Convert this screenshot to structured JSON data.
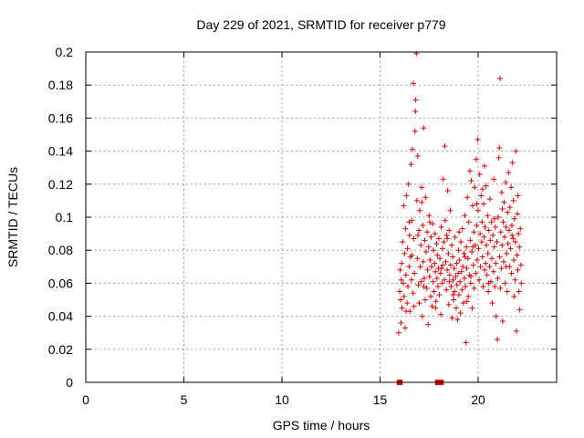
{
  "chart_data": {
    "type": "scatter",
    "title": "Day 229 of 2021, SRMTID for receiver p779",
    "xlabel": "GPS time / hours",
    "ylabel": "SRMTID / TECUs",
    "xlim": [
      0,
      24
    ],
    "ylim": [
      0,
      0.2
    ],
    "grid": true,
    "x_ticks": [
      0,
      5,
      10,
      15,
      20
    ],
    "x_tick_labels": [
      "0",
      "5",
      "10",
      "15",
      "20"
    ],
    "y_ticks": [
      0,
      0.02,
      0.04,
      0.06,
      0.08,
      0.1,
      0.12,
      0.14,
      0.16,
      0.18,
      0.2
    ],
    "y_tick_labels": [
      "0",
      "0.02",
      "0.04",
      "0.06",
      "0.08",
      "0.1",
      "0.12",
      "0.14",
      "0.16",
      "0.18",
      "0.2"
    ],
    "marker": "+",
    "color": "#e00000",
    "zero_segments": [
      [
        15.95,
        16.05
      ],
      [
        17.9,
        18.15
      ]
    ],
    "points": [
      [
        15.95,
        0.03
      ],
      [
        16.0,
        0.055
      ],
      [
        16.02,
        0.068
      ],
      [
        16.05,
        0.05
      ],
      [
        16.07,
        0.036
      ],
      [
        16.1,
        0.072
      ],
      [
        16.12,
        0.045
      ],
      [
        16.15,
        0.085
      ],
      [
        16.18,
        0.06
      ],
      [
        16.2,
        0.107
      ],
      [
        16.22,
        0.052
      ],
      [
        16.25,
        0.078
      ],
      [
        16.28,
        0.033
      ],
      [
        16.3,
        0.093
      ],
      [
        16.32,
        0.065
      ],
      [
        16.35,
        0.113
      ],
      [
        16.38,
        0.048
      ],
      [
        16.4,
        0.081
      ],
      [
        16.42,
        0.058
      ],
      [
        16.45,
        0.12
      ],
      [
        16.48,
        0.07
      ],
      [
        16.5,
        0.089
      ],
      [
        16.52,
        0.043
      ],
      [
        16.55,
        0.076
      ],
      [
        16.58,
        0.132
      ],
      [
        16.6,
        0.062
      ],
      [
        16.62,
        0.098
      ],
      [
        16.65,
        0.141
      ],
      [
        16.68,
        0.054
      ],
      [
        16.7,
        0.181
      ],
      [
        16.72,
        0.087
      ],
      [
        16.75,
        0.066
      ],
      [
        16.78,
        0.152
      ],
      [
        16.8,
        0.164
      ],
      [
        16.82,
        0.171
      ],
      [
        16.85,
        0.199
      ],
      [
        16.88,
        0.11
      ],
      [
        16.9,
        0.075
      ],
      [
        16.92,
        0.137
      ],
      [
        16.95,
        0.059
      ],
      [
        16.98,
        0.092
      ],
      [
        17.0,
        0.048
      ],
      [
        17.02,
        0.104
      ],
      [
        17.05,
        0.07
      ],
      [
        17.08,
        0.083
      ],
      [
        17.1,
        0.061
      ],
      [
        17.12,
        0.118
      ],
      [
        17.15,
        0.04
      ],
      [
        17.18,
        0.095
      ],
      [
        17.2,
        0.073
      ],
      [
        17.22,
        0.154
      ],
      [
        17.25,
        0.063
      ],
      [
        17.28,
        0.086
      ],
      [
        17.3,
        0.05
      ],
      [
        17.32,
        0.112
      ],
      [
        17.35,
        0.079
      ],
      [
        17.38,
        0.057
      ],
      [
        17.4,
        0.091
      ],
      [
        17.42,
        0.068
      ],
      [
        17.45,
        0.035
      ],
      [
        17.48,
        0.082
      ],
      [
        17.5,
        0.101
      ],
      [
        17.52,
        0.064
      ],
      [
        17.55,
        0.074
      ],
      [
        17.58,
        0.052
      ],
      [
        17.6,
        0.088
      ],
      [
        17.62,
        0.07
      ],
      [
        17.65,
        0.046
      ],
      [
        17.68,
        0.096
      ],
      [
        17.7,
        0.061
      ],
      [
        17.72,
        0.08
      ],
      [
        17.75,
        0.055
      ],
      [
        17.78,
        0.072
      ],
      [
        17.8,
        0.09
      ],
      [
        17.82,
        0.067
      ],
      [
        17.85,
        0.049
      ],
      [
        17.88,
        0.084
      ],
      [
        17.9,
        0.063
      ],
      [
        17.92,
        0.077
      ],
      [
        17.95,
        0.058
      ],
      [
        17.98,
        0.069
      ],
      [
        18.0,
        0.087
      ],
      [
        18.02,
        0.053
      ],
      [
        18.05,
        0.075
      ],
      [
        18.08,
        0.066
      ],
      [
        18.1,
        0.041
      ],
      [
        18.12,
        0.094
      ],
      [
        18.15,
        0.06
      ],
      [
        18.18,
        0.081
      ],
      [
        18.2,
        0.071
      ],
      [
        18.22,
        0.123
      ],
      [
        18.25,
        0.085
      ],
      [
        18.28,
        0.062
      ],
      [
        18.3,
        0.143
      ],
      [
        18.32,
        0.098
      ],
      [
        18.35,
        0.073
      ],
      [
        18.38,
        0.056
      ],
      [
        18.4,
        0.089
      ],
      [
        18.42,
        0.068
      ],
      [
        18.45,
        0.116
      ],
      [
        18.48,
        0.078
      ],
      [
        18.5,
        0.047
      ],
      [
        18.52,
        0.092
      ],
      [
        18.55,
        0.065
      ],
      [
        18.58,
        0.104
      ],
      [
        18.6,
        0.071
      ],
      [
        18.62,
        0.058
      ],
      [
        18.65,
        0.083
      ],
      [
        18.68,
        0.039
      ],
      [
        18.7,
        0.076
      ],
      [
        18.72,
        0.062
      ],
      [
        18.75,
        0.05
      ],
      [
        18.78,
        0.069
      ],
      [
        18.8,
        0.055
      ],
      [
        18.82,
        0.088
      ],
      [
        18.85,
        0.064
      ],
      [
        18.88,
        0.045
      ],
      [
        18.9,
        0.072
      ],
      [
        18.92,
        0.059
      ],
      [
        18.95,
        0.038
      ],
      [
        18.98,
        0.066
      ],
      [
        19.0,
        0.08
      ],
      [
        19.02,
        0.053
      ],
      [
        19.05,
        0.074
      ],
      [
        19.08,
        0.061
      ],
      [
        19.1,
        0.042
      ],
      [
        19.12,
        0.085
      ],
      [
        19.15,
        0.067
      ],
      [
        19.18,
        0.056
      ],
      [
        19.2,
        0.093
      ],
      [
        19.22,
        0.07
      ],
      [
        19.25,
        0.048
      ],
      [
        19.28,
        0.078
      ],
      [
        19.3,
        0.063
      ],
      [
        19.32,
        0.101
      ],
      [
        19.35,
        0.058
      ],
      [
        19.38,
        0.024
      ],
      [
        19.4,
        0.082
      ],
      [
        19.42,
        0.069
      ],
      [
        19.45,
        0.112
      ],
      [
        19.48,
        0.075
      ],
      [
        19.5,
        0.052
      ],
      [
        19.52,
        0.097
      ],
      [
        19.55,
        0.065
      ],
      [
        19.58,
        0.128
      ],
      [
        19.6,
        0.086
      ],
      [
        19.62,
        0.06
      ],
      [
        19.65,
        0.122
      ],
      [
        19.68,
        0.079
      ],
      [
        19.7,
        0.045
      ],
      [
        19.72,
        0.107
      ],
      [
        19.75,
        0.071
      ],
      [
        19.78,
        0.091
      ],
      [
        19.8,
        0.057
      ],
      [
        19.82,
        0.118
      ],
      [
        19.85,
        0.083
      ],
      [
        19.88,
        0.066
      ],
      [
        19.9,
        0.135
      ],
      [
        19.92,
        0.095
      ],
      [
        19.95,
        0.074
      ],
      [
        19.98,
        0.147
      ],
      [
        20.0,
        0.104
      ],
      [
        20.02,
        0.081
      ],
      [
        20.05,
        0.062
      ],
      [
        20.08,
        0.126
      ],
      [
        20.1,
        0.09
      ],
      [
        20.12,
        0.07
      ],
      [
        20.15,
        0.113
      ],
      [
        20.18,
        0.085
      ],
      [
        20.2,
        0.097
      ],
      [
        20.22,
        0.076
      ],
      [
        20.25,
        0.058
      ],
      [
        20.28,
        0.108
      ],
      [
        20.3,
        0.088
      ],
      [
        20.32,
        0.131
      ],
      [
        20.35,
        0.094
      ],
      [
        20.38,
        0.072
      ],
      [
        20.4,
        0.119
      ],
      [
        20.42,
        0.083
      ],
      [
        20.45,
        0.065
      ],
      [
        20.48,
        0.101
      ],
      [
        20.5,
        0.078
      ],
      [
        20.52,
        0.055
      ],
      [
        20.55,
        0.092
      ],
      [
        20.58,
        0.07
      ],
      [
        20.6,
        0.111
      ],
      [
        20.62,
        0.086
      ],
      [
        20.65,
        0.061
      ],
      [
        20.68,
        0.097
      ],
      [
        20.7,
        0.075
      ],
      [
        20.72,
        0.048
      ],
      [
        20.75,
        0.089
      ],
      [
        20.78,
        0.067
      ],
      [
        20.8,
        0.123
      ],
      [
        20.82,
        0.082
      ],
      [
        20.85,
        0.058
      ],
      [
        20.88,
        0.094
      ],
      [
        20.9,
        0.072
      ],
      [
        20.92,
        0.04
      ],
      [
        20.95,
        0.085
      ],
      [
        20.98,
        0.026
      ],
      [
        21.0,
        0.063
      ],
      [
        21.02,
        0.1
      ],
      [
        21.05,
        0.136
      ],
      [
        21.08,
        0.142
      ],
      [
        21.1,
        0.076
      ],
      [
        21.12,
        0.184
      ],
      [
        21.15,
        0.091
      ],
      [
        21.18,
        0.069
      ],
      [
        21.2,
        0.115
      ],
      [
        21.22,
        0.083
      ],
      [
        21.25,
        0.037
      ],
      [
        21.28,
        0.097
      ],
      [
        21.3,
        0.073
      ],
      [
        21.32,
        0.109
      ],
      [
        21.35,
        0.088
      ],
      [
        21.38,
        0.06
      ],
      [
        21.4,
        0.121
      ],
      [
        21.42,
        0.094
      ],
      [
        21.45,
        0.078
      ],
      [
        21.48,
        0.055
      ],
      [
        21.5,
        0.103
      ],
      [
        21.52,
        0.084
      ],
      [
        21.55,
        0.127
      ],
      [
        21.58,
        0.092
      ],
      [
        21.6,
        0.07
      ],
      [
        21.62,
        0.106
      ],
      [
        21.65,
        0.081
      ],
      [
        21.68,
        0.118
      ],
      [
        21.7,
        0.066
      ],
      [
        21.72,
        0.095
      ],
      [
        21.75,
        0.133
      ],
      [
        21.78,
        0.087
      ],
      [
        21.8,
        0.11
      ],
      [
        21.82,
        0.074
      ],
      [
        21.85,
        0.099
      ],
      [
        21.88,
        0.062
      ],
      [
        21.9,
        0.085
      ],
      [
        21.92,
        0.14
      ],
      [
        21.95,
        0.031
      ],
      [
        21.98,
        0.077
      ],
      [
        22.0,
        0.102
      ],
      [
        22.02,
        0.068
      ],
      [
        22.05,
        0.09
      ],
      [
        22.08,
        0.055
      ],
      [
        22.1,
        0.082
      ],
      [
        22.12,
        0.044
      ],
      [
        22.15,
        0.093
      ],
      [
        22.18,
        0.071
      ],
      [
        22.2,
        0.06
      ],
      [
        16.08,
        0.062
      ],
      [
        16.33,
        0.043
      ],
      [
        16.63,
        0.077
      ],
      [
        16.93,
        0.089
      ],
      [
        17.23,
        0.058
      ],
      [
        17.53,
        0.097
      ],
      [
        17.83,
        0.045
      ],
      [
        18.13,
        0.069
      ],
      [
        18.43,
        0.087
      ],
      [
        18.73,
        0.053
      ],
      [
        19.03,
        0.091
      ],
      [
        19.33,
        0.076
      ],
      [
        19.63,
        0.064
      ],
      [
        19.93,
        0.108
      ],
      [
        20.23,
        0.117
      ],
      [
        20.53,
        0.06
      ],
      [
        20.83,
        0.099
      ],
      [
        21.13,
        0.057
      ],
      [
        21.43,
        0.07
      ],
      [
        21.73,
        0.089
      ],
      [
        22.03,
        0.113
      ],
      [
        16.48,
        0.097
      ],
      [
        17.13,
        0.109
      ],
      [
        18.53,
        0.061
      ],
      [
        19.43,
        0.049
      ],
      [
        20.33,
        0.068
      ],
      [
        21.23,
        0.105
      ],
      [
        21.83,
        0.052
      ],
      [
        16.73,
        0.046
      ],
      [
        19.73,
        0.082
      ]
    ]
  }
}
